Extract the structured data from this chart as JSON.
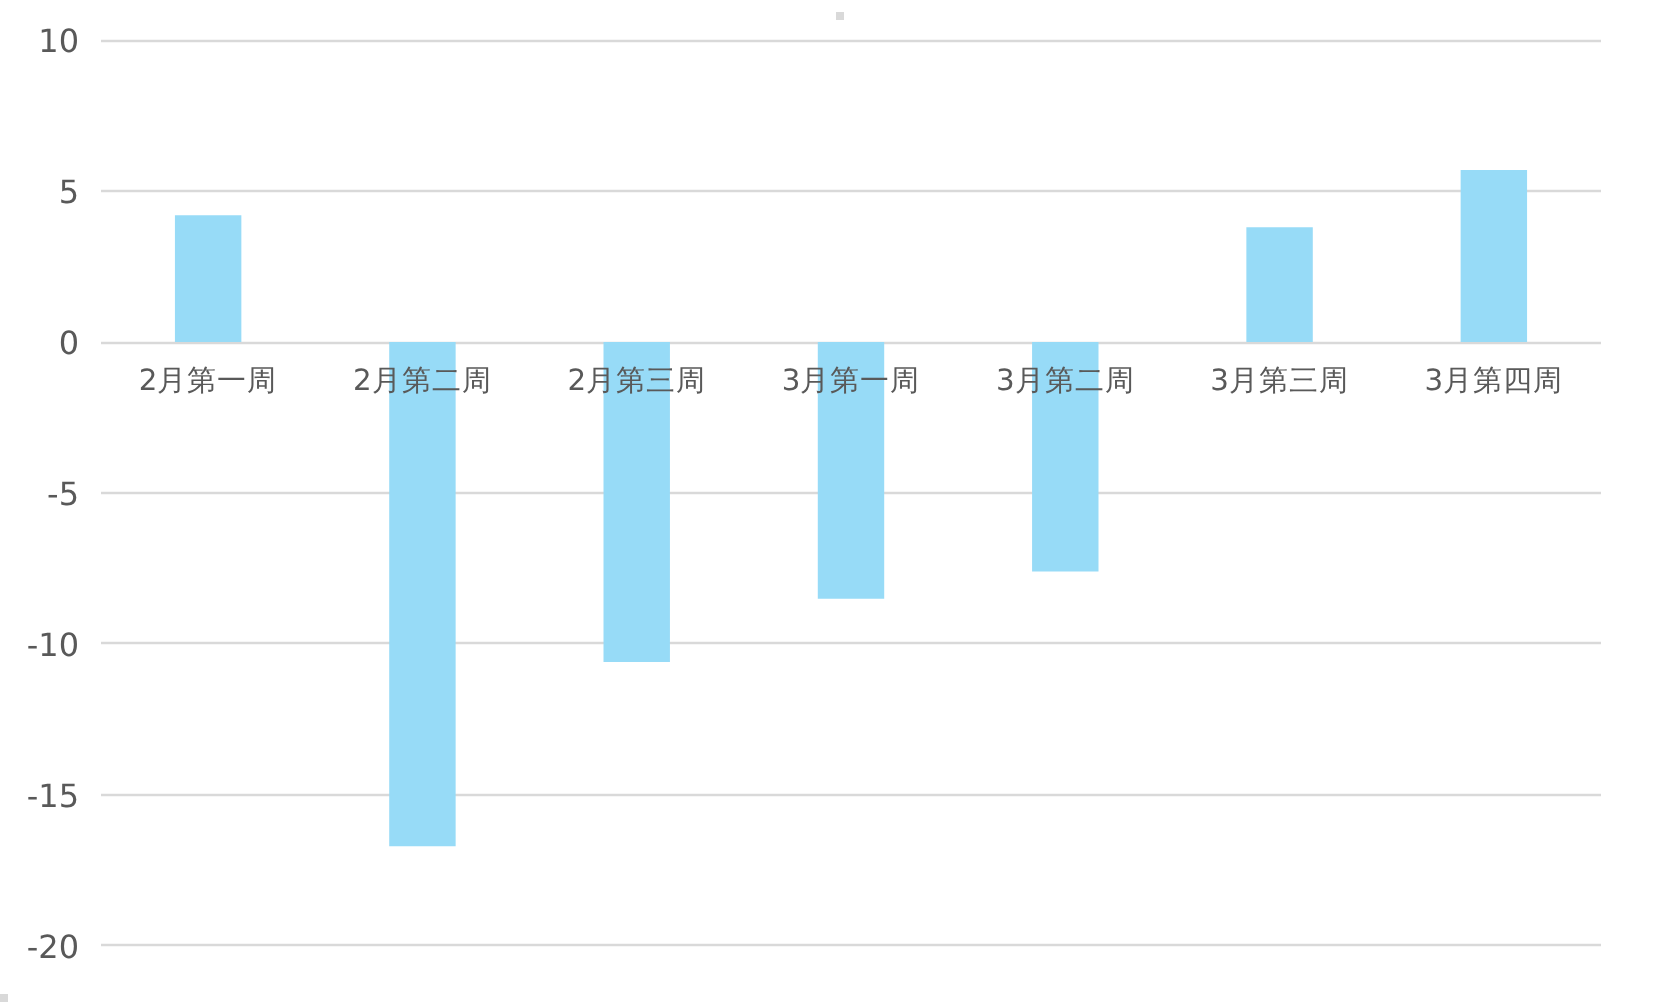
{
  "chart_data": {
    "type": "bar",
    "categories": [
      "2月第一周",
      "2月第二周",
      "2月第三周",
      "3月第一周",
      "3月第二周",
      "3月第三周",
      "3月第四周"
    ],
    "values": [
      4.2,
      -16.7,
      -10.6,
      -8.5,
      -7.6,
      3.8,
      5.7
    ],
    "color": "#97dbf7",
    "ylim": [
      -20,
      10
    ],
    "yticks": [
      -20,
      -15,
      -10,
      -5,
      0,
      5,
      10
    ],
    "grid": "y"
  }
}
